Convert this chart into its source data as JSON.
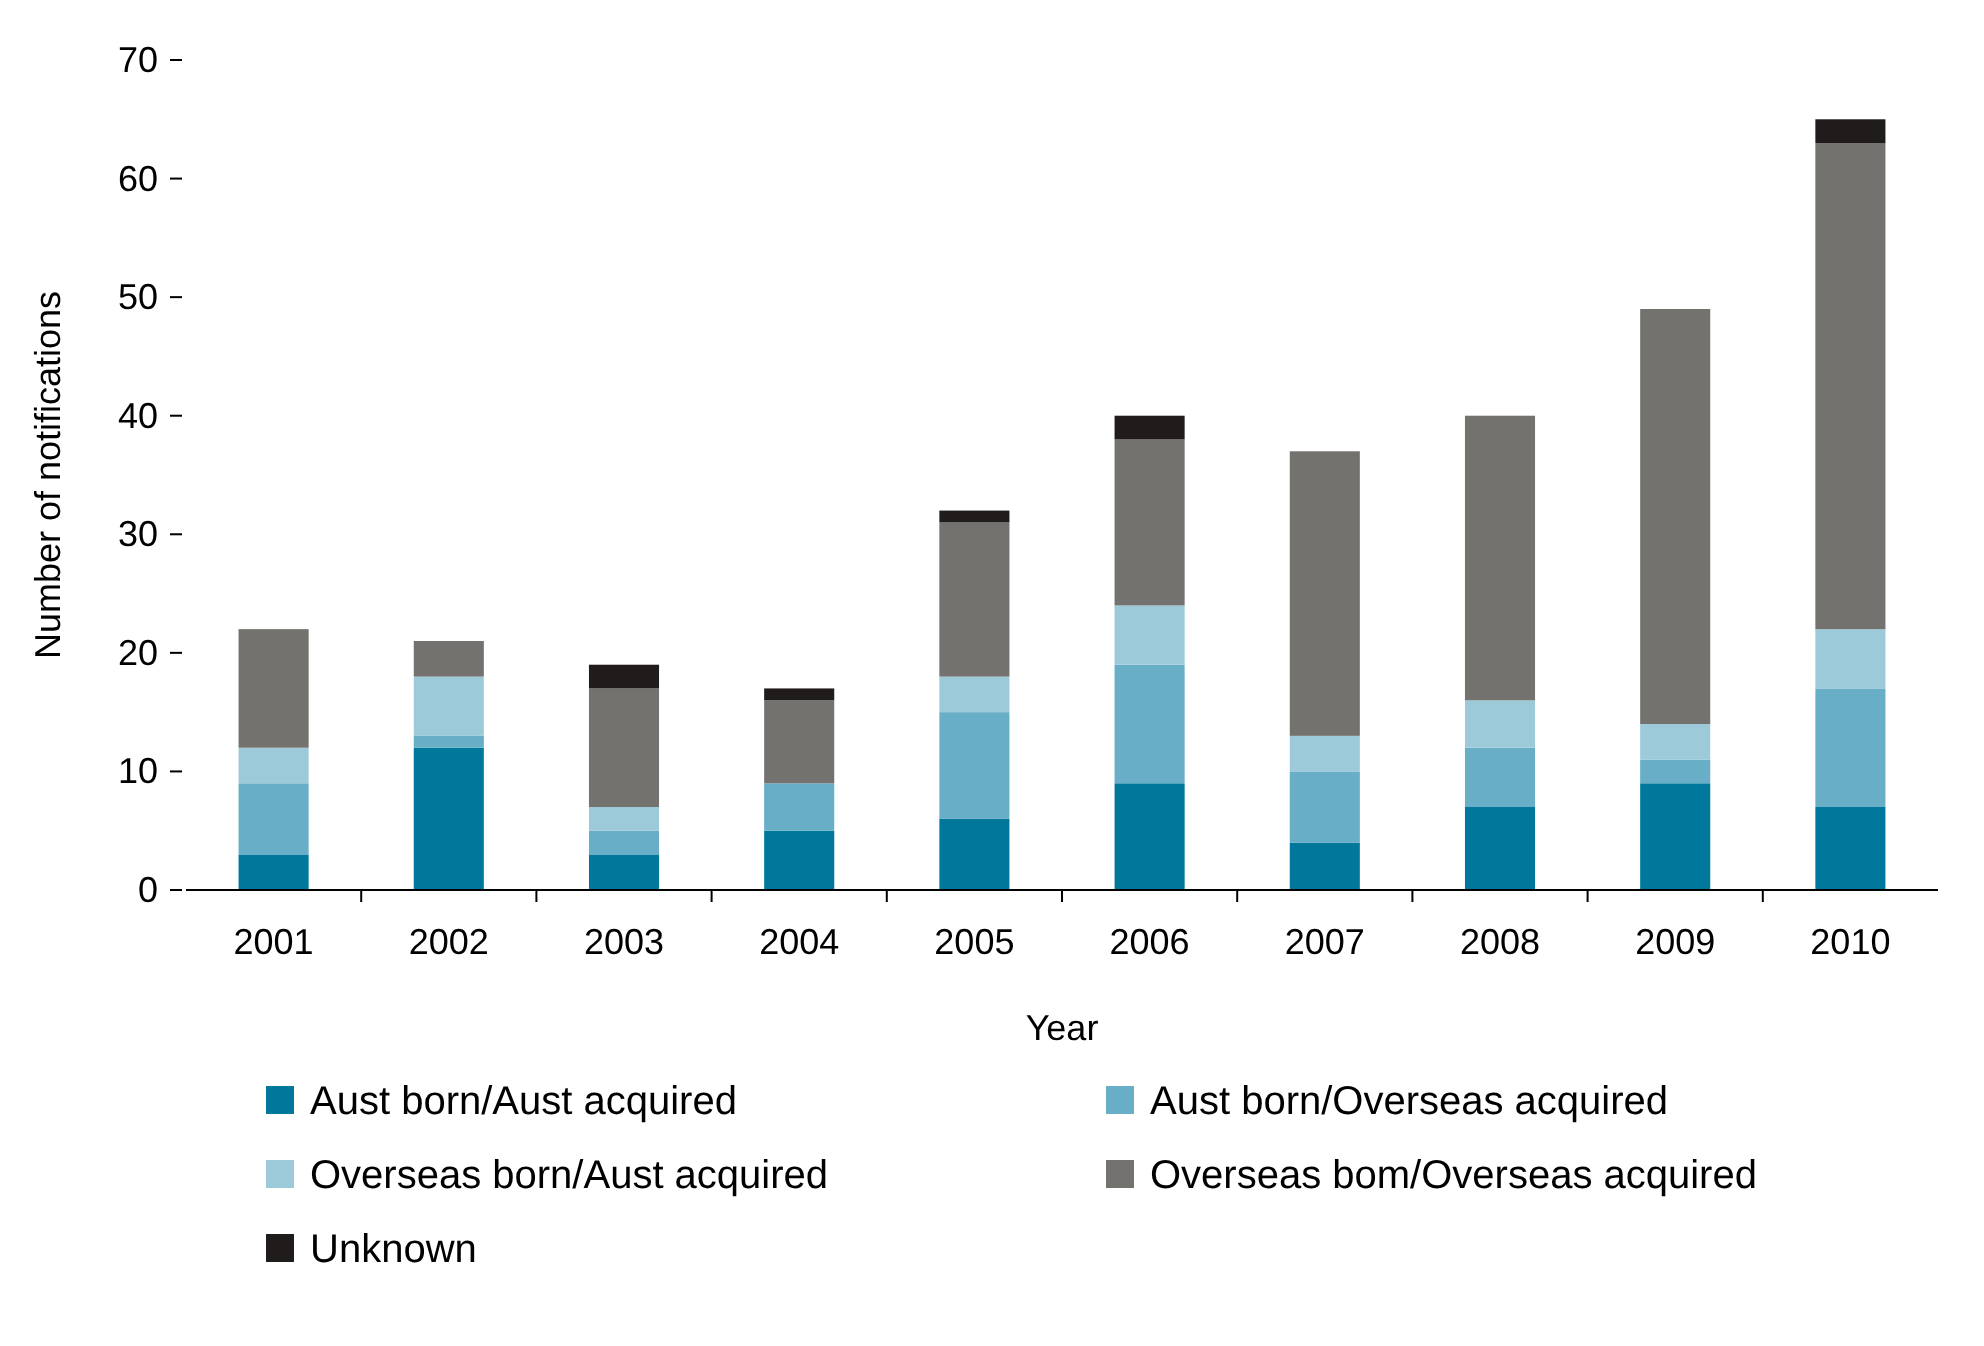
{
  "chart_data": {
    "type": "bar",
    "stacked": true,
    "xlabel": "Year",
    "ylabel": "Number of notifications",
    "categories": [
      "2001",
      "2002",
      "2003",
      "2004",
      "2005",
      "2006",
      "2007",
      "2008",
      "2009",
      "2010"
    ],
    "series": [
      {
        "name": "Aust born/Aust acquired",
        "color": "#00789c",
        "values": [
          3,
          12,
          3,
          5,
          6,
          9,
          4,
          7,
          9,
          7
        ]
      },
      {
        "name": "Aust born/Overseas acquired",
        "color": "#67aec6",
        "values": [
          6,
          1,
          2,
          4,
          9,
          10,
          6,
          5,
          2,
          10
        ]
      },
      {
        "name": "Overseas born/Aust acquired",
        "color": "#9ccad8",
        "values": [
          3,
          5,
          2,
          0,
          3,
          5,
          3,
          4,
          3,
          5
        ]
      },
      {
        "name": "Overseas bom/Overseas acquired",
        "color": "#73726f",
        "values": [
          10,
          3,
          10,
          7,
          13,
          14,
          24,
          24,
          35,
          41
        ]
      },
      {
        "name": "Unknown",
        "color": "#201c1b",
        "values": [
          0,
          0,
          2,
          1,
          1,
          2,
          0,
          0,
          0,
          2
        ]
      }
    ],
    "ylim": [
      0,
      70
    ],
    "yticks": [
      0,
      10,
      20,
      30,
      40,
      50,
      60,
      70
    ],
    "grid": false,
    "legend": "bottom"
  }
}
